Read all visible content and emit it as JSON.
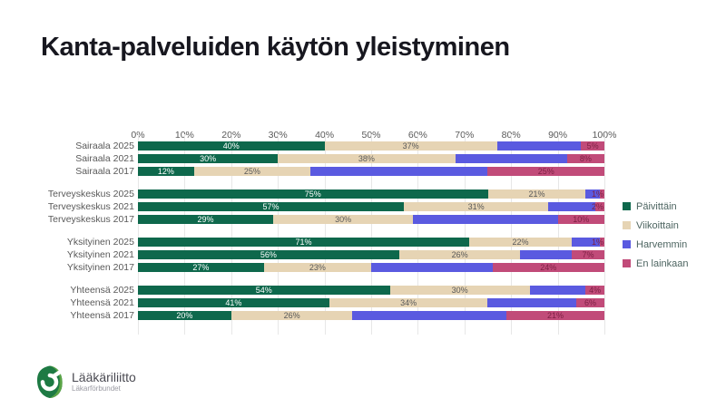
{
  "title": "Kanta-palveluiden käytön yleistyminen",
  "chart_data": {
    "type": "bar",
    "stacked": true,
    "orientation": "horizontal",
    "x_axis": {
      "min": 0,
      "max": 100,
      "ticks": [
        "0%",
        "10%",
        "20%",
        "30%",
        "40%",
        "50%",
        "60%",
        "70%",
        "80%",
        "90%",
        "100%"
      ],
      "grid": true,
      "position": "top"
    },
    "series_names": [
      "Päivittäin",
      "Viikoittain",
      "Harvemmin",
      "En lainkaan"
    ],
    "series_colors": [
      "#0e684c",
      "#e6d4b4",
      "#5a5ae0",
      "#c14b79"
    ],
    "series_label_colors": [
      "#ffffff",
      "#595959",
      "",
      "#7d2144"
    ],
    "show_segment_labels": [
      true,
      true,
      false,
      true
    ],
    "groups": [
      {
        "rows": [
          {
            "label": "Sairaala 2025",
            "values": [
              40,
              37,
              18,
              5
            ]
          },
          {
            "label": "Sairaala 2021",
            "values": [
              30,
              38,
              24,
              8
            ]
          },
          {
            "label": "Sairaala 2017",
            "values": [
              12,
              25,
              38,
              25
            ]
          }
        ]
      },
      {
        "rows": [
          {
            "label": "Terveyskeskus 2025",
            "values": [
              75,
              21,
              3,
              1
            ]
          },
          {
            "label": "Terveyskeskus 2021",
            "values": [
              57,
              31,
              10,
              2
            ]
          },
          {
            "label": "Terveyskeskus 2017",
            "values": [
              29,
              30,
              31,
              10
            ]
          }
        ]
      },
      {
        "rows": [
          {
            "label": "Yksityinen 2025",
            "values": [
              71,
              22,
              6,
              1
            ]
          },
          {
            "label": "Yksityinen 2021",
            "values": [
              56,
              26,
              11,
              7
            ]
          },
          {
            "label": "Yksityinen 2017",
            "values": [
              27,
              23,
              26,
              24
            ]
          }
        ]
      },
      {
        "rows": [
          {
            "label": "Yhteensä 2025",
            "values": [
              54,
              30,
              12,
              4
            ]
          },
          {
            "label": "Yhteensä 2021",
            "values": [
              41,
              34,
              19,
              6
            ]
          },
          {
            "label": "Yhteensä 2017",
            "values": [
              20,
              26,
              33,
              21
            ]
          }
        ]
      }
    ]
  },
  "legend": {
    "position": "right",
    "items": [
      {
        "label": "Päivittäin",
        "color": "#0e684c"
      },
      {
        "label": "Viikoittain",
        "color": "#e6d4b4"
      },
      {
        "label": "Harvemmin",
        "color": "#5a5ae0"
      },
      {
        "label": "En lainkaan",
        "color": "#c14b79"
      }
    ]
  },
  "logo": {
    "name": "Lääkäriliitto",
    "subtitle": "Läkarförbundet",
    "color": "#1e7a44"
  }
}
